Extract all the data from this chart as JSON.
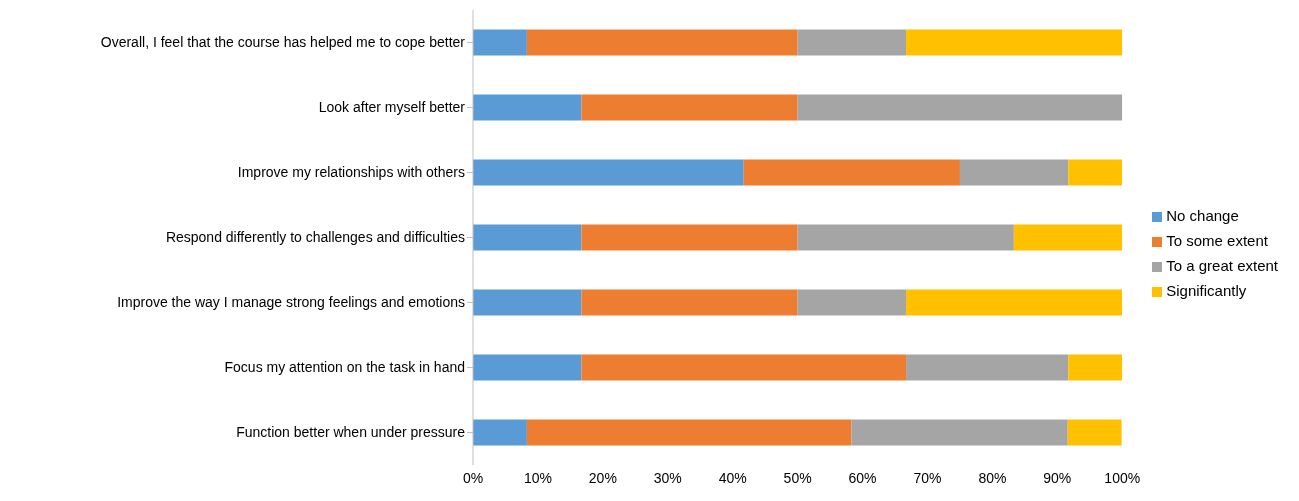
{
  "chart_data": {
    "type": "bar",
    "orientation": "horizontal",
    "stacked": true,
    "categories": [
      "Overall, I feel that the course has helped me to cope better",
      "Look after myself better",
      "Improve my relationships with others",
      "Respond differently to challenges and difficulties",
      "Improve the way I manage strong feelings and emotions",
      "Focus my attention on the task in hand",
      "Function better when under pressure"
    ],
    "series": [
      {
        "name": "No change",
        "color": "#5b9bd5",
        "values": [
          8.3,
          16.7,
          41.7,
          16.7,
          16.7,
          16.7,
          8.3
        ]
      },
      {
        "name": "To some extent",
        "color": "#ed7d31",
        "values": [
          41.7,
          33.3,
          33.3,
          33.3,
          33.3,
          50,
          50
        ]
      },
      {
        "name": "To a great extent",
        "color": "#a5a5a5",
        "values": [
          16.7,
          50,
          16.7,
          33.3,
          16.7,
          25,
          33.3
        ]
      },
      {
        "name": "Significantly",
        "color": "#ffc000",
        "values": [
          33.3,
          0,
          8.3,
          16.7,
          33.3,
          8.3,
          8.3
        ]
      }
    ],
    "xlim": [
      0,
      100
    ],
    "xticks": [
      {
        "value": 0,
        "label": "0%"
      },
      {
        "value": 10,
        "label": "10%"
      },
      {
        "value": 20,
        "label": "20%"
      },
      {
        "value": 30,
        "label": "30%"
      },
      {
        "value": 40,
        "label": "40%"
      },
      {
        "value": 50,
        "label": "50%"
      },
      {
        "value": 60,
        "label": "60%"
      },
      {
        "value": 70,
        "label": "70%"
      },
      {
        "value": 80,
        "label": "80%"
      },
      {
        "value": 90,
        "label": "90%"
      },
      {
        "value": 100,
        "label": "100%"
      }
    ],
    "grid": false,
    "legend": "right"
  }
}
